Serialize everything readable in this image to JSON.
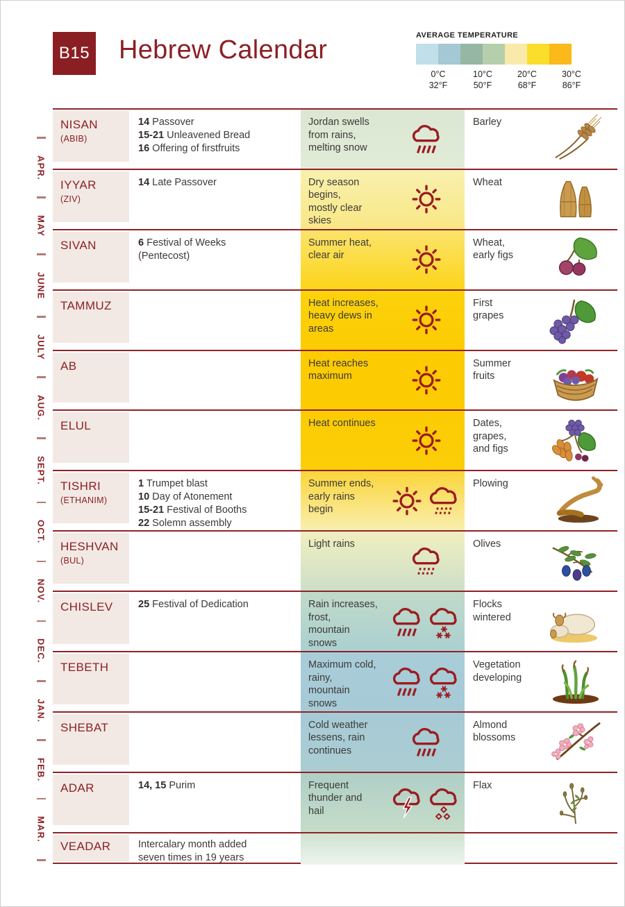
{
  "header": {
    "badge": "B15",
    "title": "Hebrew Calendar"
  },
  "legend": {
    "title": "AVERAGE TEMPERATURE",
    "swatches": [
      "#c0dfe9",
      "#a5c8d5",
      "#96b7a3",
      "#b5cfac",
      "#f9e9aa",
      "#fbdd2c",
      "#fbb91b"
    ],
    "labels": [
      {
        "c": "0°C",
        "f": "32°F"
      },
      {
        "c": "10°C",
        "f": "50°F"
      },
      {
        "c": "20°C",
        "f": "68°F"
      },
      {
        "c": "30°C",
        "f": "86°F"
      }
    ]
  },
  "rail": {
    "months": [
      "APR.",
      "MAY",
      "JUNE",
      "JULY",
      "AUG.",
      "SEPT.",
      "OCT.",
      "NOV.",
      "DEC.",
      "JAN.",
      "FEB.",
      "MAR."
    ]
  },
  "months": [
    {
      "name": "NISAN",
      "alt": "(ABIB)",
      "events": [
        {
          "num": "14",
          "text": "Passover"
        },
        {
          "num": "15-21",
          "text": "Unleavened Bread"
        },
        {
          "num": "16",
          "text": "Offering of firstfruits"
        }
      ],
      "weather": {
        "text": "Jordan swells\nfrom rains,\nmelting snow",
        "icons": [
          "cloud-rain"
        ],
        "bg_top": "#dbe7d2",
        "bg_bottom": "#e1ecd8"
      },
      "crops": {
        "label": "Barley",
        "illustration": "barley"
      }
    },
    {
      "name": "IYYAR",
      "alt": "(ZIV)",
      "events": [
        {
          "num": "14",
          "text": "Late Passover"
        }
      ],
      "weather": {
        "text": "Dry season\nbegins,\nmostly clear\nskies",
        "icons": [
          "sun"
        ],
        "bg_top": "#f8f0ae",
        "bg_bottom": "#f9e886"
      },
      "crops": {
        "label": "Wheat",
        "illustration": "wheat"
      }
    },
    {
      "name": "SIVAN",
      "alt": "",
      "events": [
        {
          "num": "6",
          "text": "Festival of Weeks"
        },
        {
          "num": "",
          "text": "(Pentecost)"
        }
      ],
      "weather": {
        "text": "Summer heat,\nclear air",
        "icons": [
          "sun"
        ],
        "bg_top": "#fbe36c",
        "bg_bottom": "#fcd51a"
      },
      "crops": {
        "label": "Wheat,\nearly figs",
        "illustration": "figs"
      }
    },
    {
      "name": "TAMMUZ",
      "alt": "",
      "events": [],
      "weather": {
        "text": "Heat increases,\nheavy dews in\nareas",
        "icons": [
          "sun"
        ],
        "bg_top": "#fcd20c",
        "bg_bottom": "#fccb02"
      },
      "crops": {
        "label": "First\ngrapes",
        "illustration": "grapes"
      }
    },
    {
      "name": "AB",
      "alt": "",
      "events": [],
      "weather": {
        "text": "Heat reaches\nmaximum",
        "icons": [
          "sun"
        ],
        "bg_top": "#fccb02",
        "bg_bottom": "#fccb02"
      },
      "crops": {
        "label": "Summer\nfruits",
        "illustration": "fruit-basket"
      }
    },
    {
      "name": "ELUL",
      "alt": "",
      "events": [],
      "weather": {
        "text": "Heat continues",
        "icons": [
          "sun"
        ],
        "bg_top": "#fccb02",
        "bg_bottom": "#fcce08"
      },
      "crops": {
        "label": "Dates,\ngrapes,\nand figs",
        "illustration": "dates"
      }
    },
    {
      "name": "TISHRI",
      "alt": "(ETHANIM)",
      "events": [
        {
          "num": "1",
          "text": "Trumpet blast"
        },
        {
          "num": "10",
          "text": "Day of Atonement"
        },
        {
          "num": "15-21",
          "text": "Festival of Booths"
        },
        {
          "num": "22",
          "text": "Solemn assembly"
        }
      ],
      "weather": {
        "text": "Summer ends,\nearly rains\nbegin",
        "icons": [
          "sun",
          "cloud-drizzle"
        ],
        "bg_top": "#fbd53a",
        "bg_bottom": "#f9efae"
      },
      "crops": {
        "label": "Plowing",
        "illustration": "plow"
      }
    },
    {
      "name": "HESHVAN",
      "alt": "(BUL)",
      "events": [],
      "weather": {
        "text": "Light rains",
        "icons": [
          "cloud-drizzle"
        ],
        "bg_top": "#f0efbf",
        "bg_bottom": "#cddfc8"
      },
      "crops": {
        "label": "Olives",
        "illustration": "olives"
      }
    },
    {
      "name": "CHISLEV",
      "alt": "",
      "events": [
        {
          "num": "25",
          "text": "Festival of Dedication"
        }
      ],
      "weather": {
        "text": "Rain increases,\nfrost,\nmountain\nsnows",
        "icons": [
          "cloud-rain",
          "cloud-snow"
        ],
        "bg_top": "#c0dac8",
        "bg_bottom": "#abd0d1"
      },
      "crops": {
        "label": "Flocks\nwintered",
        "illustration": "sheep"
      }
    },
    {
      "name": "TEBETH",
      "alt": "",
      "events": [],
      "weather": {
        "text": "Maximum cold,\nrainy,\nmountain\nsnows",
        "icons": [
          "cloud-rain",
          "cloud-snow"
        ],
        "bg_top": "#a8ccd8",
        "bg_bottom": "#a6cad6"
      },
      "crops": {
        "label": "Vegetation\ndeveloping",
        "illustration": "sprouts"
      }
    },
    {
      "name": "SHEBAT",
      "alt": "",
      "events": [],
      "weather": {
        "text": "Cold weather\nlessens, rain\ncontinues",
        "icons": [
          "cloud-rain"
        ],
        "bg_top": "#a6cad6",
        "bg_bottom": "#abcdd2"
      },
      "crops": {
        "label": "Almond\nblossoms",
        "illustration": "almond"
      }
    },
    {
      "name": "ADAR",
      "alt": "",
      "events": [
        {
          "num": "14, 15",
          "text": "Purim"
        }
      ],
      "weather": {
        "text": "Frequent\nthunder and\nhail",
        "icons": [
          "cloud-lightning",
          "cloud-hail"
        ],
        "bg_top": "#afcfc6",
        "bg_bottom": "#c6dcc9"
      },
      "crops": {
        "label": "Flax",
        "illustration": "flax"
      }
    },
    {
      "name": "VEADAR",
      "alt": "",
      "events": [
        {
          "num": "",
          "text": "Intercalary month added\nseven times in 19 years"
        }
      ],
      "weather": {
        "text": "",
        "icons": [],
        "bg_top": "#cfe2d1",
        "bg_bottom": "#eef4ec"
      },
      "crops": {
        "label": "",
        "illustration": ""
      }
    }
  ],
  "colors": {
    "accent": "#8c2026",
    "separator_line": "#8e2227",
    "month_cell_bg": "#f2e9e4",
    "weather_icon": "#9b1c20",
    "body_text": "#3c3a38",
    "badge_bg": "#8b1e23",
    "badge_text": "#ffffff",
    "rail_tick": "#b27c76",
    "page_border": "#cfcfcf"
  }
}
